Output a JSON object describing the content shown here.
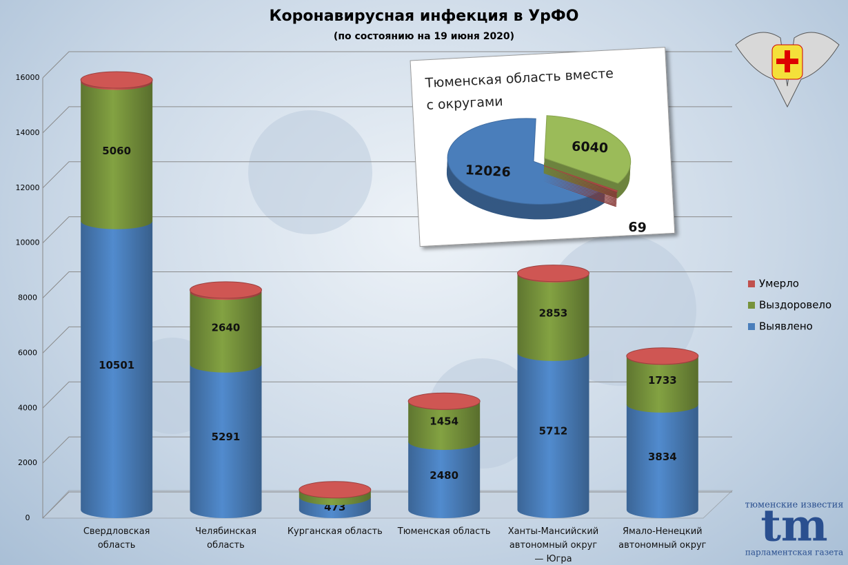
{
  "chart_data": [
    {
      "type": "bar",
      "stacked": true,
      "title": "Коронавирусная инфекция в УрФО",
      "subtitle": "(по состоянию на 19 июня 2020)",
      "categories": [
        "Свердловская область",
        "Челябинская область",
        "Курганская область",
        "Тюменская область",
        "Ханты-Мансийский автономный округ — Югра",
        "Ямало-Ненецкий автономный округ"
      ],
      "series": [
        {
          "name": "Выявлено",
          "color": "#4a7ebb",
          "values": [
            10501,
            5291,
            473,
            2480,
            5712,
            3834
          ]
        },
        {
          "name": "Выздоровело",
          "color": "#77933c",
          "values": [
            5060,
            2640,
            258,
            1454,
            2853,
            1733
          ]
        },
        {
          "name": "Умерло",
          "color": "#c0504d",
          "values": [
            64,
            60,
            0,
            15,
            32,
            22
          ]
        }
      ],
      "ylim": [
        0,
        16000
      ],
      "yticks": [
        0,
        2000,
        4000,
        6000,
        8000,
        10000,
        12000,
        14000,
        16000
      ],
      "grid": true,
      "legend": "right"
    },
    {
      "type": "pie",
      "title": "Тюменская область вместе с округами",
      "values": [
        12026,
        6040,
        69
      ],
      "colors": [
        "#4a7ebb",
        "#9bbb59",
        "#c0504d"
      ]
    }
  ],
  "logo": {
    "top": "тюменские известия",
    "mark": "tm",
    "bottom": "парламентская газета"
  }
}
